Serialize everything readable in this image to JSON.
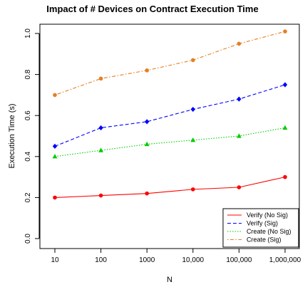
{
  "chart_data": {
    "type": "line",
    "title": "Impact of # Devices on Contract Execution Time",
    "xlabel": "N",
    "ylabel": "Execution Time (s)",
    "categories": [
      "10",
      "100",
      "1000",
      "10,000",
      "100,000",
      "1,000,000"
    ],
    "ylim": [
      0,
      1.05
    ],
    "yticks": [
      "0.0",
      "0.2",
      "0.4",
      "0.6",
      "0.8",
      "1.0"
    ],
    "legend_position": "bottom-right",
    "grid": false,
    "series": [
      {
        "name": "Verify (No Sig)",
        "color": "#ff0000",
        "dash": "solid",
        "marker": "circle",
        "values": [
          0.2,
          0.21,
          0.22,
          0.24,
          0.25,
          0.3
        ]
      },
      {
        "name": "Verify (Sig)",
        "color": "#0000ff",
        "dash": "dashed",
        "marker": "diamond",
        "values": [
          0.45,
          0.54,
          0.57,
          0.63,
          0.68,
          0.75
        ]
      },
      {
        "name": "Create (No Sig)",
        "color": "#00cc00",
        "dash": "dotted",
        "marker": "triangle",
        "values": [
          0.4,
          0.43,
          0.46,
          0.48,
          0.5,
          0.54
        ]
      },
      {
        "name": "Create (Sig)",
        "color": "#e67e22",
        "dash": "dotdash",
        "marker": "circle",
        "values": [
          0.7,
          0.78,
          0.82,
          0.87,
          0.95,
          1.01
        ]
      }
    ]
  }
}
